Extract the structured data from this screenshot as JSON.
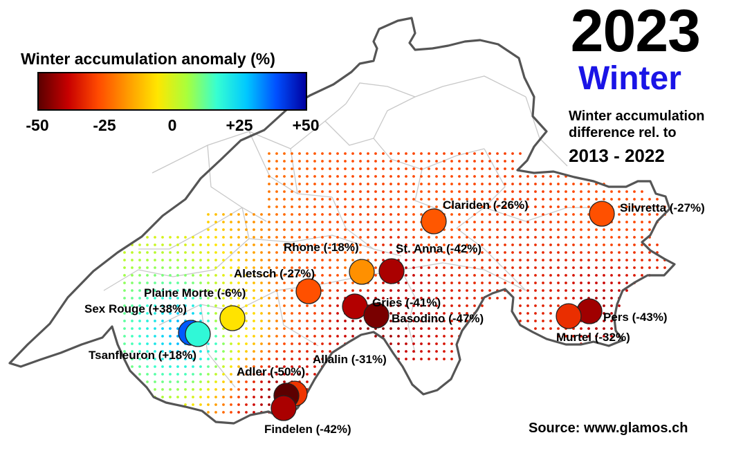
{
  "header": {
    "year": "2023",
    "season": "Winter",
    "subtitle_line1": "Winter accumulation",
    "subtitle_line2": "difference rel. to",
    "period": "2013 - 2022"
  },
  "legend": {
    "title": "Winter accumulation anomaly (%)",
    "ticks": [
      "-50",
      "-25",
      "0",
      "+25",
      "+50"
    ],
    "range": [
      -50,
      50
    ],
    "colors": [
      "#5c0000",
      "#c80000",
      "#ff4a00",
      "#ff9a00",
      "#ffe600",
      "#a8ff3c",
      "#36ffd2",
      "#00c8ff",
      "#0050ff",
      "#0000a0"
    ]
  },
  "glaciers": [
    {
      "name": "Clariden",
      "label": "Clariden (-26%)",
      "anomaly": -26
    },
    {
      "name": "Silvretta",
      "label": "Silvretta (-27%)",
      "anomaly": -27
    },
    {
      "name": "Rhone",
      "label": "Rhone (-18%)",
      "anomaly": -18
    },
    {
      "name": "St. Anna",
      "label": "St. Anna (-42%)",
      "anomaly": -42
    },
    {
      "name": "Aletsch",
      "label": "Aletsch (-27%)",
      "anomaly": -27
    },
    {
      "name": "Plaine Morte",
      "label": "Plaine Morte (-6%)",
      "anomaly": -6
    },
    {
      "name": "Sex Rouge",
      "label": "Sex Rouge (+38%)",
      "anomaly": 38
    },
    {
      "name": "Tsanfleuron",
      "label": "Tsanfleuron (+18%)",
      "anomaly": 18
    },
    {
      "name": "Gries",
      "label": "Gries (-41%)",
      "anomaly": -41
    },
    {
      "name": "Basodino",
      "label": "Basodino (-47%)",
      "anomaly": -47
    },
    {
      "name": "Pers",
      "label": "Pers (-43%)",
      "anomaly": -43
    },
    {
      "name": "Murtel",
      "label": "Murtel (-32%)",
      "anomaly": -32
    },
    {
      "name": "Allalin",
      "label": "Allalin (-31%)",
      "anomaly": -31
    },
    {
      "name": "Adler",
      "label": "Adler (-50%)",
      "anomaly": -50
    },
    {
      "name": "Findelen",
      "label": "Findelen (-42%)",
      "anomaly": -42
    }
  ],
  "source": "Source: www.glamos.ch"
}
